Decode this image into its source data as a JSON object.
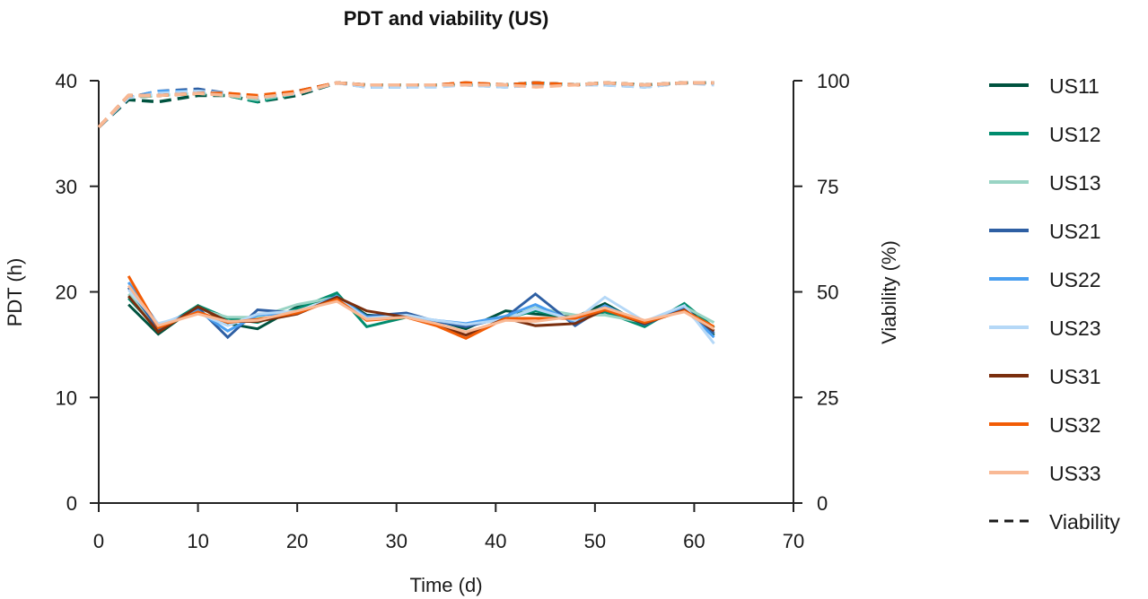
{
  "chart_data": {
    "type": "line",
    "title": "PDT and viability (US)",
    "xlabel": "Time (d)",
    "ylabel": "PDT (h)",
    "y2label": "Viability (%)",
    "xlim": [
      0,
      70
    ],
    "ylim": [
      0,
      40
    ],
    "y2lim": [
      0,
      100
    ],
    "xticks": [
      "0",
      "10",
      "20",
      "30",
      "40",
      "50",
      "60",
      "70"
    ],
    "yticks": [
      "0",
      "10",
      "20",
      "30",
      "40"
    ],
    "y2ticks": [
      "0",
      "25",
      "50",
      "75",
      "100"
    ],
    "grid": false,
    "legend_position": "right",
    "x": [
      3,
      6,
      10,
      13,
      16,
      20,
      24,
      27,
      31,
      34,
      37,
      41,
      44,
      48,
      51,
      55,
      59,
      62
    ],
    "series": [
      {
        "name": "US11",
        "color": "#00533f",
        "pdt": [
          18.8,
          16.0,
          18.7,
          17.0,
          16.5,
          18.6,
          19.6,
          17.8,
          17.6,
          17.3,
          16.5,
          18.2,
          17.9,
          17.6,
          18.9,
          16.8,
          18.8,
          15.9
        ],
        "viability_x": [
          0,
          3,
          6,
          10,
          13,
          16,
          20,
          24,
          27,
          31,
          34,
          37,
          41,
          44,
          48,
          51,
          55,
          59,
          62
        ],
        "viability": [
          89,
          95.5,
          95,
          96.5,
          96.5,
          95,
          96.5,
          99.5,
          99,
          99,
          99,
          99,
          99,
          99.5,
          99,
          99.5,
          99,
          99.5,
          99.5
        ]
      },
      {
        "name": "US12",
        "color": "#008c6e",
        "pdt": [
          19.4,
          16.4,
          18.7,
          17.5,
          17.1,
          18.4,
          19.9,
          16.7,
          17.6,
          17.2,
          16.8,
          17.5,
          18.2,
          17.4,
          18.1,
          16.7,
          18.9,
          16.6
        ],
        "viability_x": [
          0,
          3,
          6,
          10,
          13,
          16,
          20,
          24,
          27,
          31,
          34,
          37,
          41,
          44,
          48,
          51,
          55,
          59,
          62
        ],
        "viability": [
          89,
          96,
          96.5,
          97,
          96.5,
          95,
          97,
          99.5,
          99,
          99,
          99,
          99,
          99,
          99.5,
          99,
          99.5,
          99,
          99.5,
          99.5
        ]
      },
      {
        "name": "US13",
        "color": "#99d4c4",
        "pdt": [
          19.8,
          16.6,
          18.4,
          17.6,
          17.6,
          18.8,
          19.5,
          17.6,
          17.7,
          17.2,
          16.9,
          17.4,
          18.5,
          17.8,
          17.8,
          17.1,
          18.6,
          17.1
        ],
        "viability_x": [
          0,
          3,
          6,
          10,
          13,
          16,
          20,
          24,
          27,
          31,
          34,
          37,
          41,
          44,
          48,
          51,
          55,
          59,
          62
        ],
        "viability": [
          89,
          96,
          96.5,
          97,
          96.5,
          95.5,
          97,
          99.5,
          99,
          99,
          99,
          99,
          99,
          99.5,
          99,
          99.5,
          98.5,
          99.5,
          99.5
        ]
      },
      {
        "name": "US21",
        "color": "#2e5fa3",
        "pdt": [
          20.4,
          16.5,
          18.5,
          15.7,
          18.3,
          18.0,
          19.4,
          17.7,
          18.0,
          17.2,
          16.7,
          17.6,
          19.8,
          16.8,
          18.6,
          16.9,
          18.5,
          16.1
        ],
        "viability_x": [
          0,
          3,
          6,
          10,
          13,
          16,
          20,
          24,
          27,
          31,
          34,
          37,
          41,
          44,
          48,
          51,
          55,
          59,
          62
        ],
        "viability": [
          89,
          96,
          97.5,
          98,
          97,
          96,
          97,
          99.5,
          99,
          98.5,
          99,
          99,
          99,
          99.5,
          99,
          99,
          99,
          99.5,
          99.5
        ]
      },
      {
        "name": "US22",
        "color": "#4a9ff0",
        "pdt": [
          20.9,
          16.9,
          18.2,
          16.3,
          17.8,
          18.0,
          19.6,
          17.6,
          17.7,
          17.3,
          17.0,
          17.7,
          18.8,
          17.1,
          18.7,
          17.0,
          18.4,
          15.7
        ],
        "viability_x": [
          0,
          3,
          6,
          10,
          13,
          16,
          20,
          24,
          27,
          31,
          34,
          37,
          41,
          44,
          48,
          51,
          55,
          59,
          62
        ],
        "viability": [
          89,
          96,
          97.5,
          97.5,
          97,
          96,
          97,
          99.5,
          98.5,
          98.5,
          99,
          99,
          98.5,
          99,
          99,
          99,
          98.5,
          99.5,
          99.5
        ]
      },
      {
        "name": "US23",
        "color": "#b5d8f7",
        "pdt": [
          20.2,
          17.0,
          18.0,
          16.8,
          17.9,
          18.2,
          19.4,
          17.5,
          17.8,
          17.3,
          16.9,
          17.4,
          18.4,
          17.3,
          19.5,
          17.2,
          18.7,
          15.1
        ],
        "viability_x": [
          0,
          3,
          6,
          10,
          13,
          16,
          20,
          24,
          27,
          31,
          34,
          37,
          41,
          44,
          48,
          51,
          55,
          59,
          62
        ],
        "viability": [
          89,
          96,
          97,
          97.5,
          97,
          96,
          97,
          99.5,
          98.5,
          98.5,
          98.5,
          99,
          98.5,
          99,
          99,
          99,
          98.5,
          99.5,
          99
        ]
      },
      {
        "name": "US31",
        "color": "#7a2e0e",
        "pdt": [
          19.6,
          16.2,
          18.6,
          17.2,
          17.2,
          17.9,
          19.5,
          18.2,
          17.6,
          16.9,
          15.9,
          17.5,
          16.8,
          17.0,
          18.3,
          17.0,
          18.3,
          16.3
        ],
        "viability_x": [
          0,
          3,
          6,
          10,
          13,
          16,
          20,
          24,
          27,
          31,
          34,
          37,
          41,
          44,
          48,
          51,
          55,
          59,
          62
        ],
        "viability": [
          89,
          96.5,
          96.5,
          97,
          97,
          96,
          97.5,
          99.5,
          99,
          99,
          99,
          99.5,
          99,
          99.5,
          99,
          99.5,
          99,
          99.5,
          99.5
        ]
      },
      {
        "name": "US32",
        "color": "#f25c05",
        "pdt": [
          21.5,
          16.6,
          18.1,
          17.1,
          17.4,
          18.0,
          19.3,
          17.3,
          17.6,
          16.8,
          15.6,
          17.5,
          17.5,
          17.5,
          18.3,
          17.1,
          18.2,
          16.7
        ],
        "viability_x": [
          0,
          3,
          6,
          10,
          13,
          16,
          20,
          24,
          27,
          31,
          34,
          37,
          41,
          44,
          48,
          51,
          55,
          59,
          62
        ],
        "viability": [
          89,
          96.5,
          96.5,
          97,
          97,
          96.5,
          97.5,
          99.5,
          99,
          99,
          99,
          99.5,
          99,
          99.5,
          99,
          99.5,
          99,
          99.5,
          99.5
        ]
      },
      {
        "name": "US33",
        "color": "#f9b995",
        "pdt": [
          20.6,
          16.8,
          17.9,
          17.2,
          17.3,
          18.2,
          19.1,
          17.4,
          17.6,
          17.0,
          16.2,
          17.3,
          17.2,
          17.7,
          18.5,
          17.3,
          18.1,
          16.5
        ],
        "viability_x": [
          0,
          3,
          6,
          10,
          13,
          16,
          20,
          24,
          27,
          31,
          34,
          37,
          41,
          44,
          48,
          51,
          55,
          59,
          62
        ],
        "viability": [
          89,
          96.5,
          96.5,
          97,
          96.5,
          96,
          97,
          99.5,
          99,
          99,
          99,
          99,
          99,
          98.5,
          99,
          99.5,
          99,
          99.5,
          99.5
        ]
      }
    ],
    "legend": [
      {
        "label": "US11",
        "color": "#00533f",
        "style": "solid"
      },
      {
        "label": "US12",
        "color": "#008c6e",
        "style": "solid"
      },
      {
        "label": "US13",
        "color": "#99d4c4",
        "style": "solid"
      },
      {
        "label": "US21",
        "color": "#2e5fa3",
        "style": "solid"
      },
      {
        "label": "US22",
        "color": "#4a9ff0",
        "style": "solid"
      },
      {
        "label": "US23",
        "color": "#b5d8f7",
        "style": "solid"
      },
      {
        "label": "US31",
        "color": "#7a2e0e",
        "style": "solid"
      },
      {
        "label": "US32",
        "color": "#f25c05",
        "style": "solid"
      },
      {
        "label": "US33",
        "color": "#f9b995",
        "style": "solid"
      },
      {
        "label": "Viability",
        "color": "#1a1a1a",
        "style": "dashed"
      }
    ]
  }
}
